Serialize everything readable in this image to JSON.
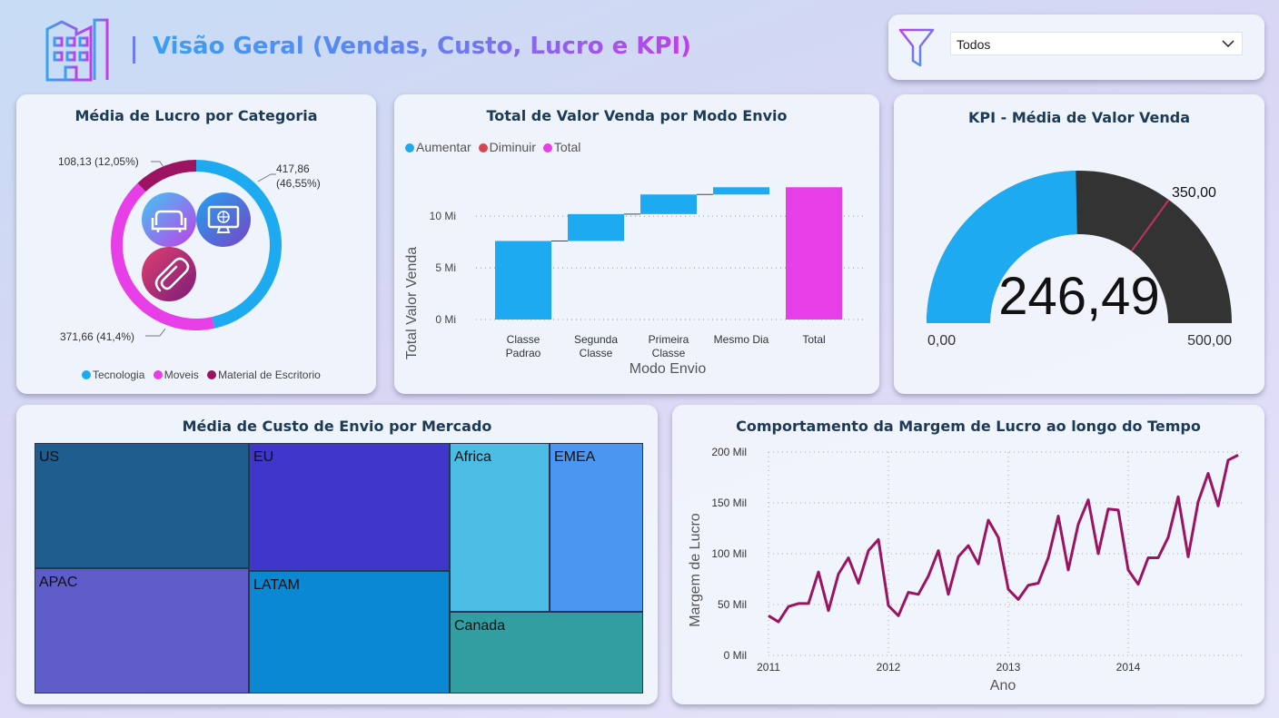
{
  "header": {
    "title": "Visão Geral (Vendas, Custo, Lucro e KPI)",
    "filter_value": "Todos"
  },
  "colors": {
    "tecnologia": "#1eaaf1",
    "moveis": "#e83ee8",
    "material": "#9c1361",
    "aumentar": "#1eaaf1",
    "diminuir": "#d64550",
    "total": "#e83ee8",
    "gauge_fill": "#1eaaf1",
    "gauge_bg": "#333333",
    "gauge_target": "#c0335c",
    "line": "#9c1361"
  },
  "donut": {
    "title": "Média de Lucro por Categoria",
    "labels": {
      "tecnologia_1": "417,86",
      "tecnologia_2": "(46,55%)",
      "moveis": "371,66 (41,4%)",
      "material": "108,13 (12,05%)"
    },
    "legend": [
      "Tecnologia",
      "Moveis",
      "Material de Escritorio"
    ],
    "icons": [
      "sofa-icon",
      "monitor-icon",
      "paperclip-icon"
    ]
  },
  "waterfall": {
    "title": "Total de Valor Venda por Modo Envio",
    "legend": [
      "Aumentar",
      "Diminuir",
      "Total"
    ],
    "ylabel": "Total Valor Venda",
    "xlabel": "Modo Envio",
    "yticks": [
      "0 Mi",
      "5 Mi",
      "10 Mi"
    ],
    "categories": [
      [
        "Classe",
        "Padrao"
      ],
      [
        "Segunda",
        "Classe"
      ],
      [
        "Primeira",
        "Classe"
      ],
      [
        "Mesmo Dia"
      ],
      [
        "Total"
      ]
    ]
  },
  "gauge": {
    "title": "KPI - Média de Valor Venda",
    "value": "246,49",
    "min": "0,00",
    "max": "500,00",
    "target": "350,00"
  },
  "treemap": {
    "title": "Média de Custo de Envio por Mercado",
    "items": [
      "US",
      "EU",
      "Africa",
      "EMEA",
      "APAC",
      "LATAM",
      "Canada"
    ]
  },
  "line": {
    "title": "Comportamento da Margem de Lucro ao longo do Tempo",
    "ylabel": "Margem de Lucro",
    "xlabel": "Ano",
    "yticks": [
      "0 Mil",
      "50 Mil",
      "100 Mil",
      "150 Mil",
      "200 Mil"
    ],
    "xticks": [
      "2011",
      "2012",
      "2013",
      "2014"
    ]
  },
  "chart_data": [
    {
      "type": "pie",
      "title": "Média de Lucro por Categoria",
      "categories": [
        "Tecnologia",
        "Moveis",
        "Material de Escritorio"
      ],
      "values": [
        417.86,
        371.66,
        108.13
      ],
      "percents": [
        46.55,
        41.4,
        12.05
      ],
      "legend": "bottom"
    },
    {
      "type": "bar",
      "subtype": "waterfall",
      "title": "Total de Valor Venda por Modo Envio",
      "categories": [
        "Classe Padrao",
        "Segunda Classe",
        "Primeira Classe",
        "Mesmo Dia",
        "Total"
      ],
      "values": [
        7.6,
        2.6,
        1.9,
        0.7,
        12.8
      ],
      "unit": "Mi",
      "xlabel": "Modo Envio",
      "ylabel": "Total Valor Venda",
      "ylim": [
        0,
        13
      ],
      "legend": "top-left"
    },
    {
      "type": "gauge",
      "title": "KPI - Média de Valor Venda",
      "value": 246.49,
      "min": 0,
      "max": 500,
      "target": 350
    },
    {
      "type": "heatmap",
      "subtype": "treemap",
      "title": "Média de Custo de Envio por Mercado",
      "categories": [
        "US",
        "EU",
        "APAC",
        "LATAM",
        "Africa",
        "EMEA",
        "Canada"
      ]
    },
    {
      "type": "line",
      "title": "Comportamento da Margem de Lucro ao longo do Tempo",
      "xlabel": "Ano",
      "ylabel": "Margem de Lucro",
      "unit": "Mil",
      "x_start": 2011,
      "x_step_months": 1,
      "values": [
        39,
        33,
        48,
        51,
        51,
        82,
        44,
        80,
        96,
        71,
        103,
        114,
        49,
        39,
        62,
        60,
        78,
        103,
        60,
        97,
        108,
        90,
        133,
        116,
        65,
        55,
        69,
        71,
        96,
        137,
        84,
        129,
        153,
        100,
        144,
        143,
        84,
        70,
        96,
        96,
        116,
        156,
        97,
        151,
        179,
        147,
        192,
        197
      ],
      "ylim": [
        0,
        200
      ],
      "xticks": [
        2011,
        2012,
        2013,
        2014
      ],
      "grid": true
    }
  ]
}
